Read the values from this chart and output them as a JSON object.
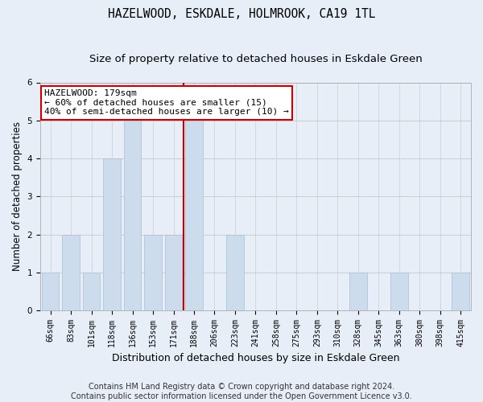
{
  "title": "HAZELWOOD, ESKDALE, HOLMROOK, CA19 1TL",
  "subtitle": "Size of property relative to detached houses in Eskdale Green",
  "xlabel": "Distribution of detached houses by size in Eskdale Green",
  "ylabel": "Number of detached properties",
  "footer_line1": "Contains HM Land Registry data © Crown copyright and database right 2024.",
  "footer_line2": "Contains public sector information licensed under the Open Government Licence v3.0.",
  "categories": [
    "66sqm",
    "83sqm",
    "101sqm",
    "118sqm",
    "136sqm",
    "153sqm",
    "171sqm",
    "188sqm",
    "206sqm",
    "223sqm",
    "241sqm",
    "258sqm",
    "275sqm",
    "293sqm",
    "310sqm",
    "328sqm",
    "345sqm",
    "363sqm",
    "380sqm",
    "398sqm",
    "415sqm"
  ],
  "values": [
    1,
    2,
    1,
    4,
    5,
    2,
    2,
    5,
    0,
    2,
    0,
    0,
    0,
    0,
    0,
    1,
    0,
    1,
    0,
    0,
    1
  ],
  "bar_color": "#ccdcec",
  "bar_edge_color": "#a8c0d4",
  "red_line_index": 7,
  "red_line_color": "#cc0000",
  "annotation_title": "HAZELWOOD: 179sqm",
  "annotation_line1": "← 60% of detached houses are smaller (15)",
  "annotation_line2": "40% of semi-detached houses are larger (10) →",
  "annotation_box_color": "#ffffff",
  "annotation_box_edge": "#cc0000",
  "ylim": [
    0,
    6.0
  ],
  "yticks": [
    0,
    1,
    2,
    3,
    4,
    5,
    6
  ],
  "grid_color": "#cccccc",
  "background_color": "#e8eef8",
  "axes_background": "#e8eef8",
  "title_fontsize": 10.5,
  "subtitle_fontsize": 9.5,
  "xlabel_fontsize": 9,
  "ylabel_fontsize": 8.5,
  "tick_fontsize": 7,
  "footer_fontsize": 7,
  "annotation_fontsize": 8
}
